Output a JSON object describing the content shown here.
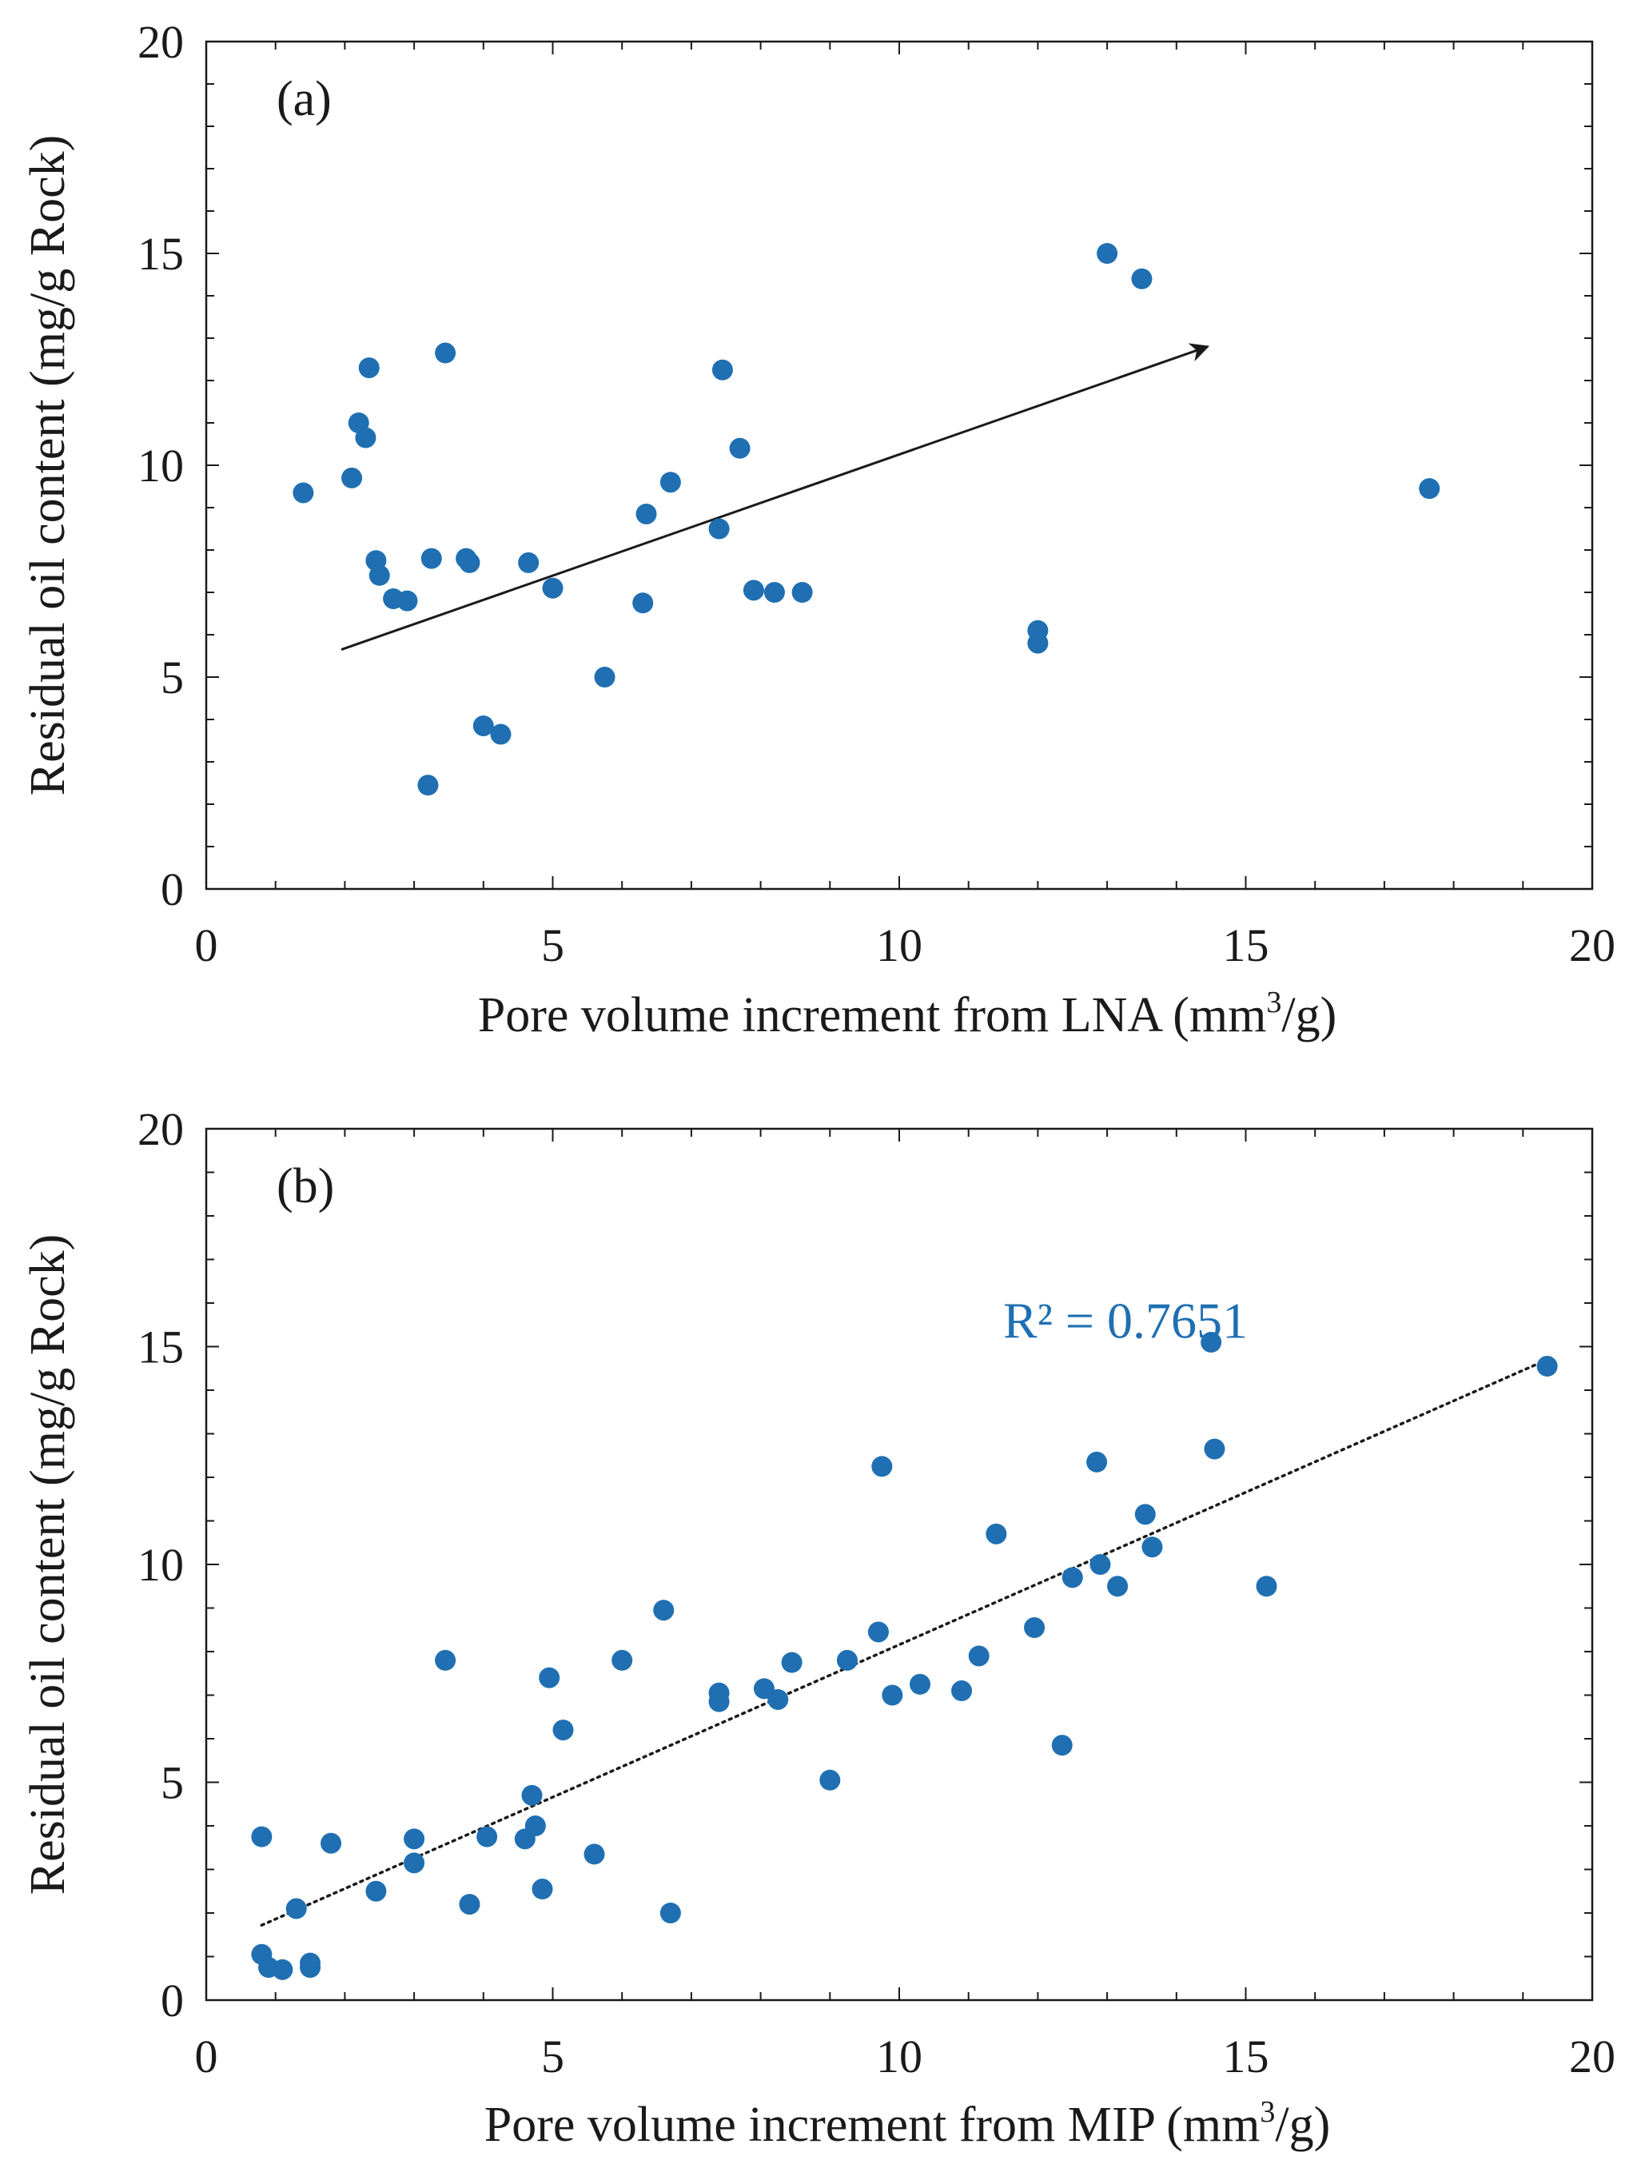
{
  "colors": {
    "point": "#1f6fb2",
    "axis": "#1a1a1a",
    "arrow": "#1a1a1a",
    "trend": "#1a1a1a",
    "r2": "#1f6fb2"
  },
  "chart_data": [
    {
      "type": "scatter",
      "panel_label": "(a)",
      "xlabel_text": "Pore volume increment from LNA (mm",
      "xlabel_sup": "3",
      "xlabel_tail": "/g)",
      "ylabel": "Residual oil content (mg/g Rock)",
      "xlim": [
        0,
        20
      ],
      "ylim": [
        0,
        20
      ],
      "x_ticks": [
        0,
        5,
        10,
        15,
        20
      ],
      "y_ticks": [
        0,
        5,
        10,
        15,
        20
      ],
      "x_tick_labels": [
        "0",
        "5",
        "10",
        "15",
        "20"
      ],
      "y_tick_labels": [
        "0",
        "5",
        "10",
        "15",
        "20"
      ],
      "minor_tick_step": 1,
      "points": [
        {
          "x": 1.4,
          "y": 9.35
        },
        {
          "x": 2.1,
          "y": 9.7
        },
        {
          "x": 2.2,
          "y": 11.0
        },
        {
          "x": 2.3,
          "y": 10.65
        },
        {
          "x": 2.35,
          "y": 12.3
        },
        {
          "x": 2.45,
          "y": 7.75
        },
        {
          "x": 2.5,
          "y": 7.4
        },
        {
          "x": 2.7,
          "y": 6.85
        },
        {
          "x": 2.9,
          "y": 6.8
        },
        {
          "x": 3.2,
          "y": 2.45
        },
        {
          "x": 3.25,
          "y": 7.8
        },
        {
          "x": 3.45,
          "y": 12.65
        },
        {
          "x": 3.75,
          "y": 7.8
        },
        {
          "x": 3.8,
          "y": 7.7
        },
        {
          "x": 4.0,
          "y": 3.85
        },
        {
          "x": 4.25,
          "y": 3.65
        },
        {
          "x": 4.65,
          "y": 7.7
        },
        {
          "x": 5.0,
          "y": 7.1
        },
        {
          "x": 5.75,
          "y": 5.0
        },
        {
          "x": 6.3,
          "y": 6.75
        },
        {
          "x": 6.35,
          "y": 8.85
        },
        {
          "x": 6.7,
          "y": 9.6
        },
        {
          "x": 7.4,
          "y": 8.5
        },
        {
          "x": 7.45,
          "y": 12.25
        },
        {
          "x": 7.7,
          "y": 10.4
        },
        {
          "x": 7.9,
          "y": 7.05
        },
        {
          "x": 8.2,
          "y": 7.0
        },
        {
          "x": 8.6,
          "y": 7.0
        },
        {
          "x": 12.0,
          "y": 6.1
        },
        {
          "x": 12.0,
          "y": 5.8
        },
        {
          "x": 13.0,
          "y": 15.0
        },
        {
          "x": 13.5,
          "y": 14.4
        },
        {
          "x": 17.65,
          "y": 9.45
        }
      ],
      "arrow": {
        "x1": 1.95,
        "y1": 5.65,
        "x2": 14.45,
        "y2": 12.8
      }
    },
    {
      "type": "scatter",
      "panel_label": "(b)",
      "xlabel_text": "Pore volume increment from MIP (mm",
      "xlabel_sup": "3",
      "xlabel_tail": "/g)",
      "ylabel": "Residual oil content (mg/g Rock)",
      "xlim": [
        0,
        20
      ],
      "ylim": [
        0,
        20
      ],
      "x_ticks": [
        0,
        5,
        10,
        15,
        20
      ],
      "y_ticks": [
        0,
        5,
        10,
        15,
        20
      ],
      "x_tick_labels": [
        "0",
        "5",
        "10",
        "15",
        "20"
      ],
      "y_tick_labels": [
        "0",
        "5",
        "10",
        "15",
        "20"
      ],
      "minor_tick_step": 1,
      "annotation": "R² = 0.7651",
      "annotation_at": {
        "x": 11.5,
        "y": 15.2
      },
      "points": [
        {
          "x": 0.8,
          "y": 3.75
        },
        {
          "x": 0.8,
          "y": 1.05
        },
        {
          "x": 0.9,
          "y": 0.75
        },
        {
          "x": 1.1,
          "y": 0.7
        },
        {
          "x": 1.3,
          "y": 2.1
        },
        {
          "x": 1.5,
          "y": 0.85
        },
        {
          "x": 1.5,
          "y": 0.75
        },
        {
          "x": 1.8,
          "y": 3.6
        },
        {
          "x": 2.45,
          "y": 2.5
        },
        {
          "x": 3.0,
          "y": 3.7
        },
        {
          "x": 3.0,
          "y": 3.15
        },
        {
          "x": 3.45,
          "y": 7.8
        },
        {
          "x": 3.8,
          "y": 2.2
        },
        {
          "x": 4.05,
          "y": 3.75
        },
        {
          "x": 4.6,
          "y": 3.7
        },
        {
          "x": 4.7,
          "y": 4.7
        },
        {
          "x": 4.75,
          "y": 4.0
        },
        {
          "x": 4.85,
          "y": 2.55
        },
        {
          "x": 4.95,
          "y": 7.4
        },
        {
          "x": 5.15,
          "y": 6.2
        },
        {
          "x": 5.6,
          "y": 3.35
        },
        {
          "x": 6.0,
          "y": 7.8
        },
        {
          "x": 6.6,
          "y": 8.95
        },
        {
          "x": 6.7,
          "y": 2.0
        },
        {
          "x": 7.4,
          "y": 7.05
        },
        {
          "x": 7.4,
          "y": 6.85
        },
        {
          "x": 8.05,
          "y": 7.15
        },
        {
          "x": 8.25,
          "y": 6.9
        },
        {
          "x": 8.45,
          "y": 7.75
        },
        {
          "x": 9.0,
          "y": 5.05
        },
        {
          "x": 9.25,
          "y": 7.8
        },
        {
          "x": 9.7,
          "y": 8.45
        },
        {
          "x": 9.75,
          "y": 12.25
        },
        {
          "x": 9.9,
          "y": 7.0
        },
        {
          "x": 10.3,
          "y": 7.25
        },
        {
          "x": 10.9,
          "y": 7.1
        },
        {
          "x": 11.15,
          "y": 7.9
        },
        {
          "x": 11.4,
          "y": 10.7
        },
        {
          "x": 11.95,
          "y": 8.55
        },
        {
          "x": 12.35,
          "y": 5.85
        },
        {
          "x": 12.5,
          "y": 9.7
        },
        {
          "x": 12.85,
          "y": 12.35
        },
        {
          "x": 12.9,
          "y": 10.0
        },
        {
          "x": 13.15,
          "y": 9.5
        },
        {
          "x": 13.55,
          "y": 11.15
        },
        {
          "x": 13.65,
          "y": 10.4
        },
        {
          "x": 14.5,
          "y": 15.1
        },
        {
          "x": 14.55,
          "y": 12.65
        },
        {
          "x": 15.3,
          "y": 9.5
        },
        {
          "x": 19.35,
          "y": 14.55
        }
      ],
      "trendline": {
        "x1": 0.8,
        "y1": 1.72,
        "x2": 19.35,
        "y2": 14.7
      }
    }
  ]
}
